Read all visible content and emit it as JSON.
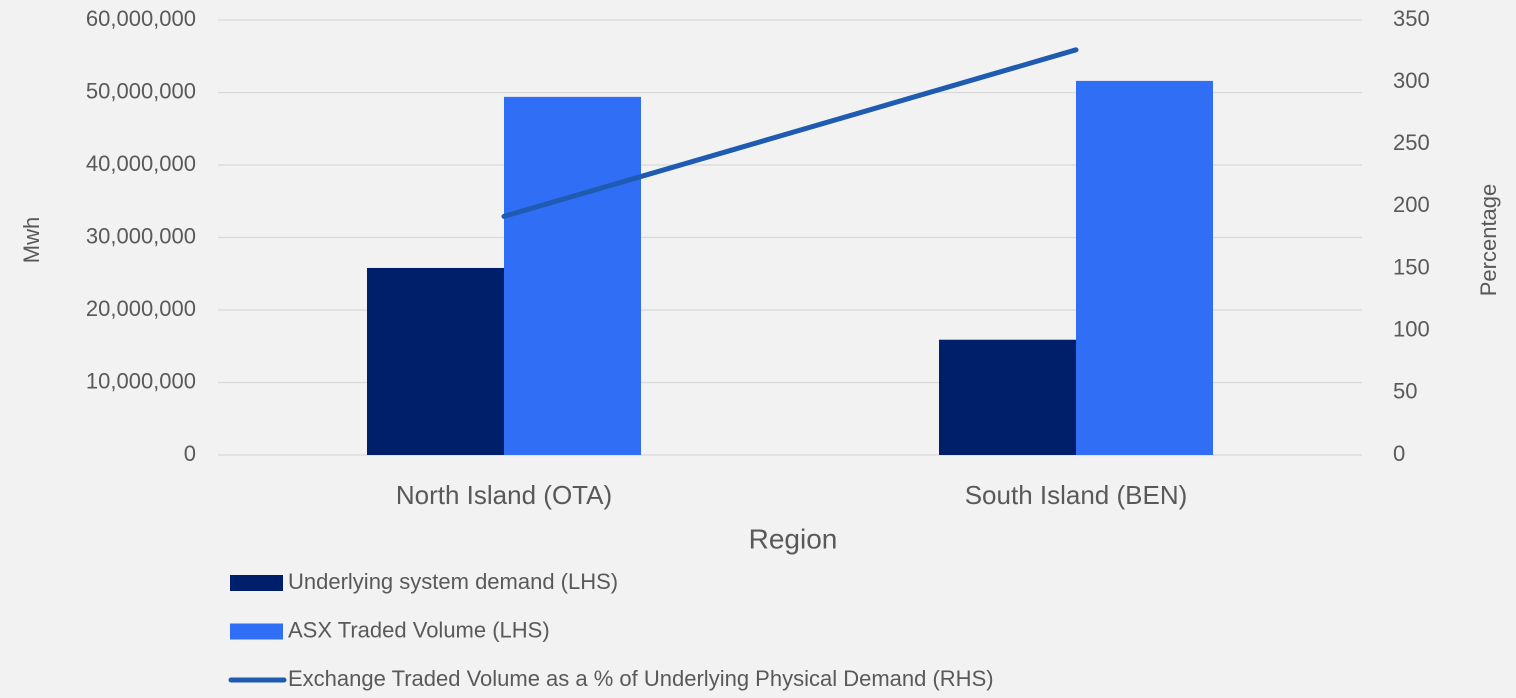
{
  "chart_data": {
    "type": "bar",
    "x_label": "Region",
    "y_label": "Mwh",
    "y2_label": "Percentage",
    "categories": [
      "North Island (OTA)",
      "South Island (BEN)"
    ],
    "series": [
      {
        "name": "Underlying system demand (LHS)",
        "type": "bar",
        "color": "#001f6b",
        "values": [
          25800000,
          15900000
        ]
      },
      {
        "name": "ASX Traded Volume (LHS)",
        "type": "bar",
        "color": "#2f6ef5",
        "values": [
          49400000,
          51600000
        ]
      },
      {
        "name": "Exchange Traded Volume as a % of Underlying Physical Demand (RHS)",
        "type": "line",
        "axis": "y2",
        "color": "#1f5bb0",
        "values": [
          192,
          326
        ]
      }
    ],
    "ylim": [
      0,
      60000000
    ],
    "yticks": [
      0,
      {
        "value": 10000000,
        "label": "10,000,000"
      },
      {
        "value": 20000000,
        "label": "20,000,000"
      },
      {
        "value": 30000000,
        "label": "30,000,000"
      },
      {
        "value": 40000000,
        "label": "40,000,000"
      },
      {
        "value": 50000000,
        "label": "50,000,000"
      },
      {
        "value": 60000000,
        "label": "60,000,000"
      }
    ],
    "y2lim": [
      0,
      350
    ],
    "y2ticks": [
      0,
      50,
      100,
      150,
      200,
      250,
      300,
      350
    ],
    "grid": true,
    "legend": "bottom"
  }
}
